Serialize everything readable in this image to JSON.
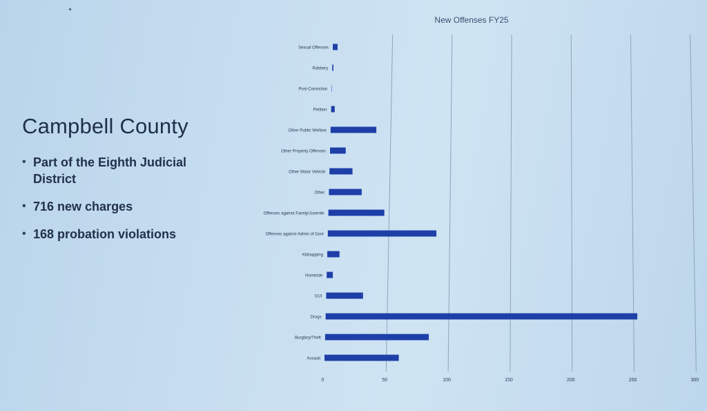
{
  "slide": {
    "title": "Campbell County",
    "bullets": [
      "Part of the Eighth Judicial District",
      "716 new charges",
      "168 probation violations"
    ]
  },
  "colors": {
    "bar": "#1e3fa8",
    "gridline": "#8fa3b8",
    "text": "#2a3a55",
    "chart_title": "#3b4f6e"
  },
  "chart_data": {
    "type": "bar",
    "orientation": "horizontal",
    "title": "New Offenses FY25",
    "categories": [
      "Sexual Offenses",
      "Robbery",
      "Post-Conviction",
      "Petition",
      "Other Public Welfare",
      "Other Property Offenses",
      "Other Motor Vehicle",
      "Other",
      "Offenses against Family/Juvenile",
      "Offenses against Admin of Govt",
      "Kidnapping",
      "Homicide",
      "DUI",
      "Drugs",
      "Burglary/Theft",
      "Assault"
    ],
    "values": [
      4,
      1,
      0,
      3,
      38,
      13,
      19,
      27,
      46,
      89,
      10,
      5,
      30,
      253,
      84,
      60
    ],
    "xlim": [
      0,
      300
    ],
    "xticks": [
      "0",
      "50",
      "100",
      "150",
      "200",
      "250",
      "300"
    ],
    "grid": true
  }
}
